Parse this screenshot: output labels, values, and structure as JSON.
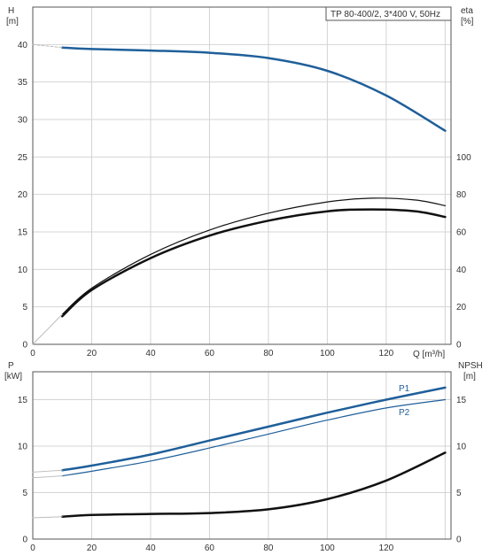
{
  "chart_data": [
    {
      "type": "line",
      "title": "TP 80-400/2, 3*400 V, 50Hz",
      "xlabel": "Q [m³/h]",
      "xlim": [
        0,
        142
      ],
      "xticks": [
        0,
        20,
        40,
        60,
        80,
        100,
        120
      ],
      "y_left": {
        "label_top": "H",
        "label_unit": "[m]",
        "lim": [
          0,
          45
        ],
        "ticks": [
          0,
          5,
          10,
          15,
          20,
          25,
          30,
          35,
          40
        ]
      },
      "y_right": {
        "label_top": "eta",
        "label_unit": "[%]",
        "lim": [
          0,
          180
        ],
        "ticks": [
          0,
          20,
          40,
          60,
          80,
          100
        ]
      },
      "grid": true,
      "series": [
        {
          "axis": "left",
          "color": "#1f5f9a",
          "width": 2.5,
          "x": [
            10,
            20,
            40,
            60,
            80,
            100,
            120,
            140
          ],
          "y": [
            39.6,
            39.4,
            39.2,
            38.9,
            38.2,
            36.5,
            33.2,
            28.5
          ]
        },
        {
          "axis": "left",
          "color": "#bbbbbb",
          "width": 1,
          "dashed": true,
          "x": [
            0,
            10
          ],
          "y": [
            40.0,
            39.6
          ]
        },
        {
          "axis": "right",
          "color": "#111111",
          "width": 1.2,
          "x": [
            10,
            20,
            40,
            60,
            80,
            100,
            115,
            130,
            140
          ],
          "y": [
            16,
            30,
            48,
            61,
            70,
            76,
            78,
            77,
            74
          ]
        },
        {
          "axis": "right",
          "color": "#111111",
          "width": 2.5,
          "x": [
            10,
            20,
            40,
            60,
            80,
            100,
            115,
            130,
            140
          ],
          "y": [
            15,
            29,
            46,
            58,
            66,
            71,
            72,
            71,
            68
          ]
        },
        {
          "axis": "right",
          "color": "#bbbbbb",
          "width": 1,
          "x": [
            0,
            10
          ],
          "y": [
            0,
            16
          ]
        }
      ]
    },
    {
      "type": "line",
      "xlim": [
        0,
        142
      ],
      "xticks": [
        0,
        20,
        40,
        60,
        80,
        100,
        120
      ],
      "y_left": {
        "label_top": "P",
        "label_unit": "[kW]",
        "lim": [
          0,
          18
        ],
        "ticks": [
          0,
          5,
          10,
          15
        ]
      },
      "y_right": {
        "label_top": "NPSH",
        "label_unit": "[m]",
        "lim": [
          0,
          18
        ],
        "ticks": [
          0,
          5,
          10,
          15
        ]
      },
      "grid": true,
      "series": [
        {
          "name": "P1",
          "axis": "left",
          "color": "#1f5f9a",
          "width": 2.5,
          "x": [
            10,
            20,
            40,
            60,
            80,
            100,
            120,
            140
          ],
          "y": [
            7.4,
            7.9,
            9.1,
            10.6,
            12.1,
            13.6,
            15.0,
            16.3
          ]
        },
        {
          "name": "P2",
          "axis": "left",
          "color": "#1f5f9a",
          "width": 1.2,
          "x": [
            10,
            20,
            40,
            60,
            80,
            100,
            120,
            140
          ],
          "y": [
            6.8,
            7.3,
            8.4,
            9.8,
            11.3,
            12.8,
            14.1,
            15.0
          ]
        },
        {
          "axis": "right",
          "color": "#111111",
          "width": 2.5,
          "x": [
            10,
            20,
            40,
            60,
            80,
            100,
            120,
            140
          ],
          "y": [
            2.4,
            2.6,
            2.7,
            2.8,
            3.2,
            4.3,
            6.3,
            9.3
          ]
        },
        {
          "axis": "left",
          "color": "#bbbbbb",
          "width": 1,
          "x": [
            0,
            10
          ],
          "y": [
            7.2,
            7.4
          ]
        },
        {
          "axis": "left",
          "color": "#bbbbbb",
          "width": 1,
          "x": [
            0,
            10
          ],
          "y": [
            6.6,
            6.8
          ]
        },
        {
          "axis": "right",
          "color": "#bbbbbb",
          "width": 1,
          "x": [
            0,
            10
          ],
          "y": [
            2.3,
            2.4
          ]
        }
      ]
    }
  ]
}
